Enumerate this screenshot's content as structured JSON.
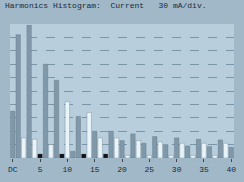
{
  "chart_data": {
    "type": "bar",
    "title": "Harmonics Histogram:  Current   30 mA/div.",
    "categories": [
      "DC",
      null,
      null,
      null,
      null,
      "5",
      null,
      null,
      null,
      null,
      "10",
      null,
      null,
      null,
      null,
      "15",
      null,
      null,
      null,
      null,
      "20",
      null,
      null,
      null,
      null,
      "25",
      null,
      null,
      null,
      null,
      "30",
      null,
      null,
      null,
      null,
      "35",
      null,
      null,
      null,
      null,
      "40"
    ],
    "values": [
      3.5,
      9.2,
      1.5,
      9.9,
      1.4,
      0.3,
      7.0,
      1.0,
      5.8,
      0.3,
      4.2,
      0.5,
      3.1,
      0.3,
      3.4,
      2.0,
      1.5,
      0.3,
      2.0,
      1.5,
      1.3,
      0.2,
      1.8,
      1.3,
      1.1,
      0.2,
      1.6,
      1.2,
      1.0,
      0.2,
      1.5,
      1.1,
      0.9,
      0.2,
      1.4,
      1.1,
      0.85,
      0.2,
      1.35,
      1.1,
      0.8
    ],
    "colors": [
      "#8099aa",
      "#8099aa",
      "#e8f4f8",
      "#8099aa",
      "#e8f4f8",
      "#111111",
      "#8099aa",
      "#e8f4f8",
      "#8099aa",
      "#111111",
      "#e8f4f8",
      "#8099aa",
      "#8099aa",
      "#111111",
      "#e8f4f8",
      "#8099aa",
      "#e8f4f8",
      "#111111",
      "#8099aa",
      "#e8f4f8",
      "#8099aa",
      "#e8f4f8",
      "#8099aa",
      "#e8f4f8",
      "#8099aa",
      "#e8f4f8",
      "#8099aa",
      "#e8f4f8",
      "#8099aa",
      "#e8f4f8",
      "#8099aa",
      "#e8f4f8",
      "#8099aa",
      "#e8f4f8",
      "#8099aa",
      "#e8f4f8",
      "#8099aa",
      "#e8f4f8",
      "#8099aa",
      "#e8f4f8",
      "#8099aa"
    ],
    "ylim": [
      0,
      10
    ],
    "yticks": [
      0,
      1,
      2,
      3,
      4,
      5,
      6,
      7,
      8,
      9,
      10
    ],
    "grid": true,
    "tick_labels": "x"
  }
}
